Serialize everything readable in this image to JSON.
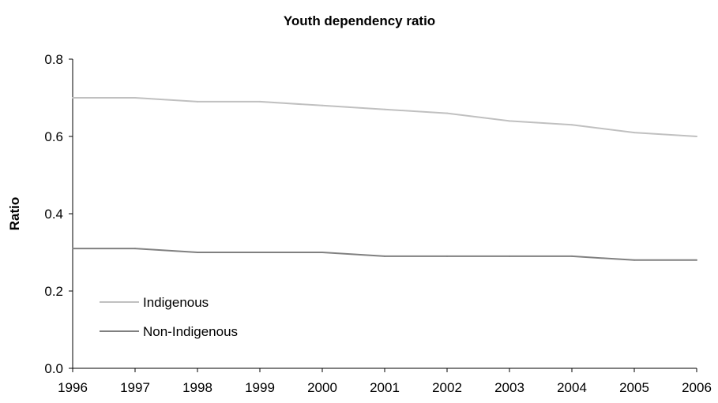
{
  "chart_data": {
    "type": "line",
    "title": "Youth dependency ratio",
    "xlabel": "",
    "ylabel": "Ratio",
    "x": [
      "1996",
      "1997",
      "1998",
      "1999",
      "2000",
      "2001",
      "2002",
      "2003",
      "2004",
      "2005",
      "2006"
    ],
    "ylim": [
      0,
      0.8
    ],
    "yticks": [
      "0.0",
      "0.2",
      "0.4",
      "0.6",
      "0.8"
    ],
    "grid": false,
    "legend_position": "bottom-left",
    "series": [
      {
        "name": "Indigenous",
        "color": "#c0c0c0",
        "values": [
          0.7,
          0.7,
          0.69,
          0.69,
          0.68,
          0.67,
          0.66,
          0.64,
          0.63,
          0.61,
          0.6
        ]
      },
      {
        "name": "Non-Indigenous",
        "color": "#808080",
        "values": [
          0.31,
          0.31,
          0.3,
          0.3,
          0.3,
          0.29,
          0.29,
          0.29,
          0.29,
          0.28,
          0.28
        ]
      }
    ]
  }
}
